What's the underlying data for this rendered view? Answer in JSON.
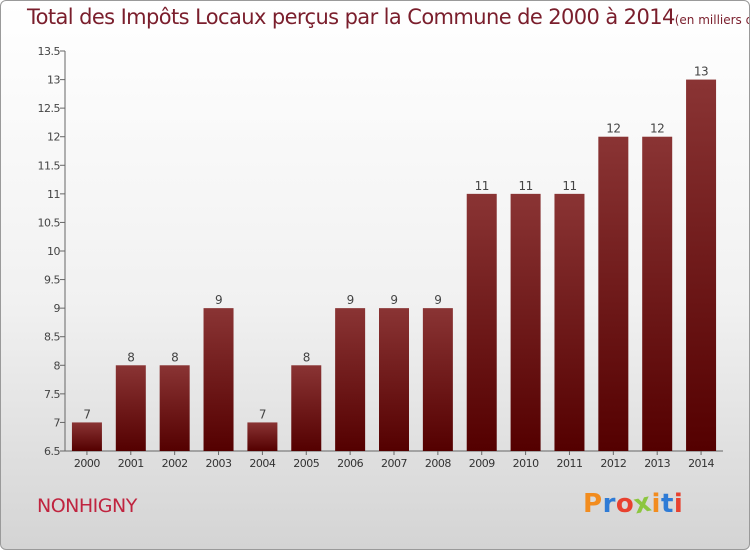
{
  "header": {
    "title": "Total des Impôts Locaux perçus par la Commune de 2000 à 2014",
    "unit": "(en milliers d'€)"
  },
  "footer": {
    "commune": "NONHIGNY"
  },
  "logo": {
    "letters": [
      "P",
      "r",
      "o",
      "x",
      "i",
      "t",
      "i"
    ],
    "colors": [
      "#f28c1e",
      "#2e7bd6",
      "#e8412f",
      "#8cc63f",
      "#f28c1e",
      "#2e7bd6",
      "#e8412f"
    ]
  },
  "chart_data": {
    "type": "bar",
    "title": "Total des Impôts Locaux perçus par la Commune de 2000 à 2014",
    "categories": [
      "2000",
      "2001",
      "2002",
      "2003",
      "2004",
      "2005",
      "2006",
      "2007",
      "2008",
      "2009",
      "2010",
      "2011",
      "2012",
      "2013",
      "2014"
    ],
    "values": [
      7,
      8,
      8,
      9,
      7,
      8,
      9,
      9,
      9,
      11,
      11,
      11,
      12,
      12,
      13
    ],
    "value_labels": [
      "7",
      "8",
      "8",
      "9",
      "7",
      "8",
      "9",
      "9",
      "9",
      "11",
      "11",
      "11",
      "12",
      "12",
      "13"
    ],
    "ylim": [
      6.5,
      13.5
    ],
    "yticks": [
      6.5,
      7,
      7.5,
      8,
      8.5,
      9,
      9.5,
      10,
      10.5,
      11,
      11.5,
      12,
      12.5,
      13,
      13.5
    ],
    "ytick_labels": [
      "6.5",
      "7",
      "7.5",
      "8",
      "8.5",
      "9",
      "9.5",
      "10",
      "10.5",
      "11",
      "11.5",
      "12",
      "12.5",
      "13",
      "13.5"
    ],
    "grid": false,
    "bar_color_top": "#8a3434",
    "bar_color_bottom": "#540000"
  }
}
